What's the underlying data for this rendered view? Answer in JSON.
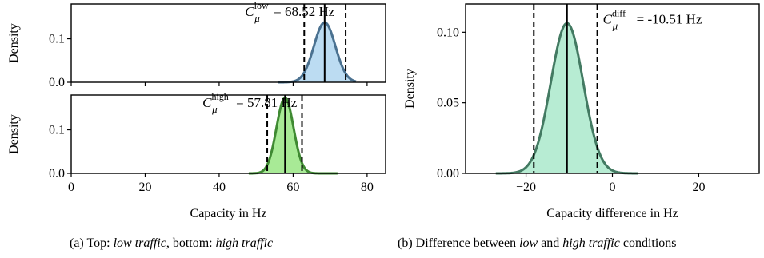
{
  "captions": {
    "a": {
      "prefix": "(a) Top: ",
      "low": "low traffic",
      "mid": ", bottom: ",
      "high": "high traffic"
    },
    "b": {
      "prefix": "(b) Difference between ",
      "low": "low",
      "mid": " and ",
      "high": "high traffic",
      "suffix": " conditions"
    }
  },
  "chart_data": [
    {
      "type": "area",
      "panel": "a-top",
      "xlabel": "",
      "ylabel": "Density",
      "xlim": [
        0,
        85
      ],
      "ylim": [
        0,
        0.18
      ],
      "xticks": [
        0,
        20,
        40,
        60,
        80
      ],
      "show_xtick_labels": false,
      "yticks": [
        0.0,
        0.1
      ],
      "ytick_labels": [
        "0.0",
        "0.1"
      ],
      "fill_color": "#bcdcf2",
      "line_color": "#4a7190",
      "series": [
        {
          "mean": 68.52,
          "sd": 2.9,
          "x_range": [
            56,
            77
          ]
        }
      ],
      "vlines": {
        "mean": 68.52,
        "dashed": [
          63.0,
          74.2
        ]
      },
      "annotation": {
        "symbol": "C",
        "sub": "μ",
        "sup": "low",
        "text": " = 68.52 Hz",
        "anchor_x": 47,
        "anchor_y": 0.152
      }
    },
    {
      "type": "area",
      "panel": "a-bottom",
      "xlabel": "Capacity in Hz",
      "ylabel": "Density",
      "xlim": [
        0,
        85
      ],
      "ylim": [
        0,
        0.18
      ],
      "xticks": [
        0,
        20,
        40,
        60,
        80
      ],
      "xtick_labels": [
        "0",
        "20",
        "40",
        "60",
        "80"
      ],
      "yticks": [
        0.0,
        0.1
      ],
      "ytick_labels": [
        "0.0",
        "0.1"
      ],
      "fill_color": "#a8ea96",
      "line_color": "#3f8a32",
      "series": [
        {
          "mean": 57.81,
          "sd": 2.3,
          "x_range": [
            48,
            72
          ]
        }
      ],
      "vlines": {
        "mean": 57.81,
        "dashed": [
          53.0,
          62.4
        ]
      },
      "annotation": {
        "symbol": "C",
        "sub": "μ",
        "sup": "high",
        "text": " = 57.81 Hz",
        "anchor_x": 35.5,
        "anchor_y": 0.152
      }
    },
    {
      "type": "area",
      "panel": "b",
      "xlabel": "Capacity difference in Hz",
      "ylabel": "Density",
      "xlim": [
        -34,
        34
      ],
      "ylim": [
        0,
        0.12
      ],
      "xticks": [
        -20,
        0,
        20
      ],
      "xtick_labels": [
        "−20",
        "0",
        "20"
      ],
      "yticks": [
        0.0,
        0.05,
        0.1
      ],
      "ytick_labels": [
        "0.00",
        "0.05",
        "0.10"
      ],
      "fill_color": "#b7ecd3",
      "line_color": "#437a62",
      "series": [
        {
          "mean": -10.51,
          "sd": 3.75,
          "x_range": [
            -27,
            6
          ]
        }
      ],
      "vlines": {
        "mean": -10.51,
        "dashed": [
          -18.2,
          -3.5
        ]
      },
      "annotation": {
        "symbol": "C",
        "sub": "μ",
        "sup": "diff",
        "text": " = -10.51 Hz",
        "anchor_x": -2.2,
        "anchor_y": 0.106
      }
    }
  ]
}
